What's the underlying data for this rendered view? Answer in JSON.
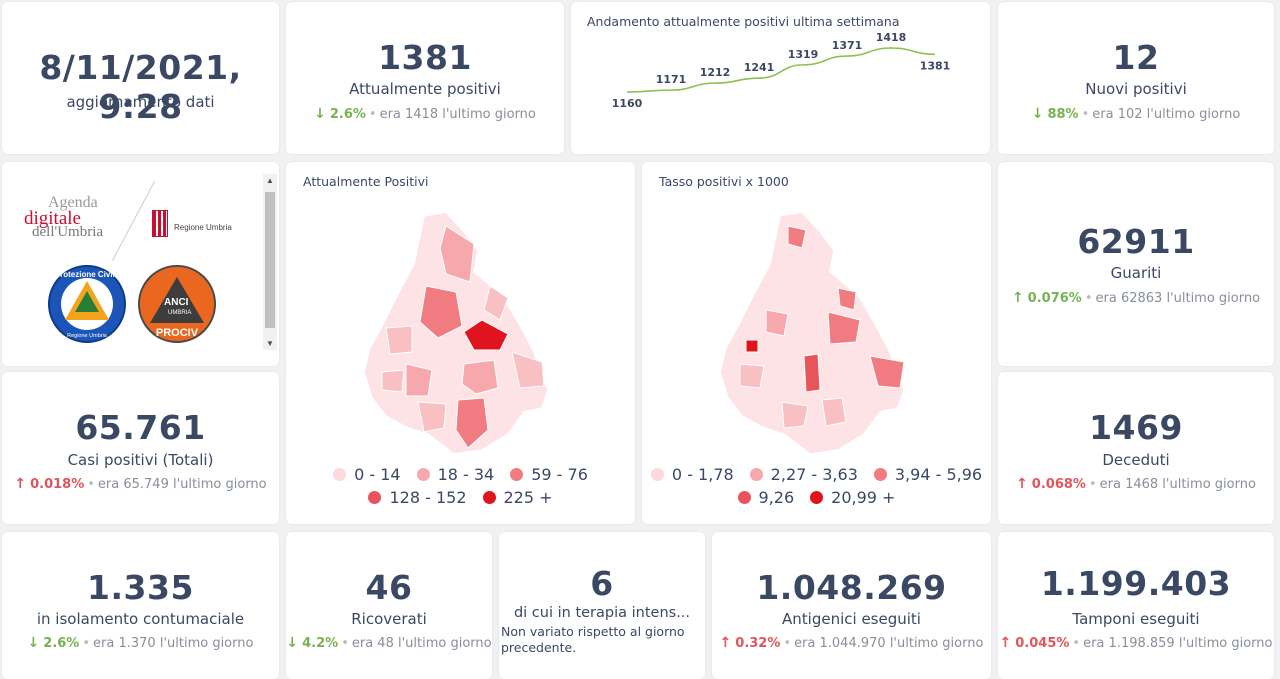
{
  "update": {
    "value": "8/11/2021, 9:28",
    "label": "aggiornamento dati"
  },
  "attualmente_positivi": {
    "value": "1381",
    "label": "Attualmente positivi",
    "direction": "down",
    "pct": "2.6%",
    "prev": "era 1418",
    "suffix": "l'ultimo giorno"
  },
  "trend": {
    "title": "Andamento attualmente positivi ultima settimana",
    "line_color": "#8cc152",
    "chart_data": {
      "type": "line",
      "title": "Andamento attualmente positivi ultima settimana",
      "values": [
        1160,
        1171,
        1212,
        1241,
        1319,
        1371,
        1418,
        1381
      ],
      "value_labels": [
        "1160",
        "1171",
        "1212",
        "1241",
        "1319",
        "1371",
        "1418",
        "1381"
      ]
    }
  },
  "nuovi_positivi": {
    "value": "12",
    "label": "Nuovi positivi",
    "direction": "down",
    "pct": "88%",
    "prev": "era 102",
    "suffix": "l'ultimo giorno"
  },
  "logos": {
    "agenda_1": "Agenda",
    "agenda_2": "digitale",
    "agenda_3": "dell'Umbria",
    "regione": "Regione Umbria",
    "protezione_civile": "Protezione Civile",
    "protezione_civile_sub": "Regione Umbria",
    "anci": "ANCI",
    "anci_sub": "UMBRIA",
    "prociv": "PROCIV"
  },
  "map1": {
    "title": "Attualmente Positivi",
    "legend": [
      {
        "label": "0 - 14",
        "color": "#fdd9db"
      },
      {
        "label": "18 - 34",
        "color": "#f7a8ad"
      },
      {
        "label": "59 - 76",
        "color": "#f07c82"
      },
      {
        "label": "128 - 152",
        "color": "#e8545c"
      },
      {
        "label": "225 +",
        "color": "#e0141e"
      }
    ]
  },
  "map2": {
    "title": "Tasso positivi x 1000",
    "legend": [
      {
        "label": "0 - 1,78",
        "color": "#fdd9db"
      },
      {
        "label": "2,27 - 3,63",
        "color": "#f7a8ad"
      },
      {
        "label": "3,94 - 5,96",
        "color": "#f07c82"
      },
      {
        "label": "9,26",
        "color": "#e8545c"
      },
      {
        "label": "20,99 +",
        "color": "#e0141e"
      }
    ]
  },
  "guariti": {
    "value": "62911",
    "label": "Guariti",
    "direction": "up-good",
    "pct": "0.076%",
    "prev": "era 62863",
    "suffix": "l'ultimo giorno"
  },
  "casi_totali": {
    "value": "65.761",
    "label": "Casi positivi (Totali)",
    "direction": "up",
    "pct": "0.018%",
    "prev": "era 65.749",
    "suffix": "l'ultimo giorno"
  },
  "deceduti": {
    "value": "1469",
    "label": "Deceduti",
    "direction": "up",
    "pct": "0.068%",
    "prev": "era 1468",
    "suffix": "l'ultimo giorno"
  },
  "isolamento": {
    "value": "1.335",
    "label": "in isolamento contumaciale",
    "direction": "down",
    "pct": "2.6%",
    "prev": "era 1.370",
    "suffix": "l'ultimo giorno"
  },
  "ricoverati": {
    "value": "46",
    "label": "Ricoverati",
    "direction": "down",
    "pct": "4.2%",
    "prev": "era 48",
    "suffix": "l'ultimo giorno"
  },
  "terapia": {
    "value": "6",
    "label": "di cui in terapia intens...",
    "note": "Non variato rispetto al giorno precedente."
  },
  "antigenici": {
    "value": "1.048.269",
    "label": "Antigenici eseguiti",
    "direction": "up",
    "pct": "0.32%",
    "prev": "era 1.044.970",
    "suffix": "l'ultimo giorno"
  },
  "tamponi": {
    "value": "1.199.403",
    "label": "Tamponi eseguiti",
    "direction": "up",
    "pct": "0.045%",
    "prev": "era 1.198.859",
    "suffix": "l'ultimo giorno"
  }
}
